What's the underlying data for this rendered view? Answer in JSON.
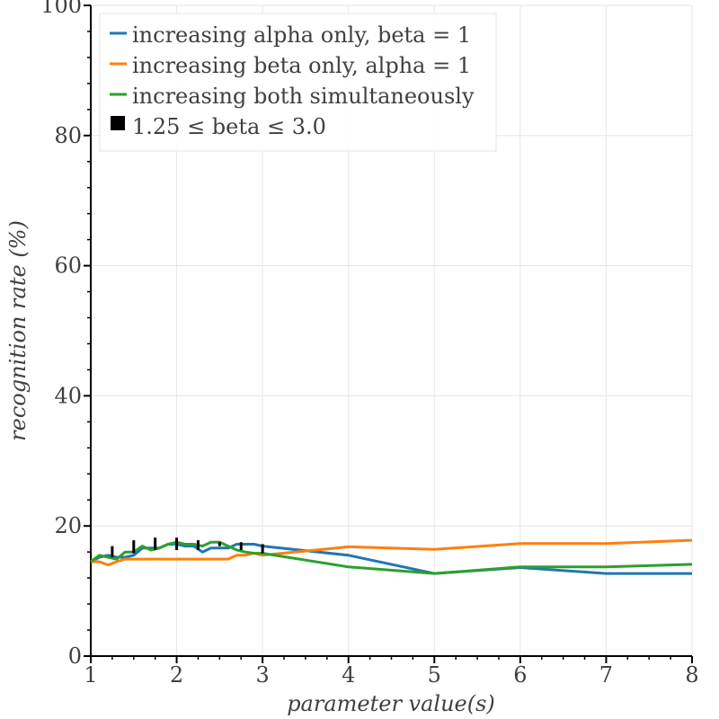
{
  "chart_data": {
    "type": "line",
    "title": "",
    "xlabel": "parameter value(s)",
    "ylabel": "recognition rate (%)",
    "xlim": [
      1,
      8
    ],
    "ylim": [
      0,
      100
    ],
    "xticks": [
      "1",
      "2",
      "3",
      "4",
      "5",
      "6",
      "7",
      "8"
    ],
    "yticks": [
      "0",
      "20",
      "40",
      "60",
      "80",
      "100"
    ],
    "grid": true,
    "legend_position": "top-left",
    "series": [
      {
        "name": "increasing alpha only, beta = 1",
        "color": "#1f77b4",
        "x": [
          1.0,
          1.1,
          1.2,
          1.3,
          1.4,
          1.5,
          1.6,
          1.7,
          1.8,
          1.9,
          2.0,
          2.1,
          2.2,
          2.3,
          2.4,
          2.5,
          2.6,
          2.7,
          2.8,
          2.9,
          3.0,
          4.0,
          5.0,
          6.0,
          7.0,
          8.0
        ],
        "y": [
          14.5,
          15.2,
          15.5,
          15.2,
          15.2,
          15.5,
          16.6,
          16.6,
          16.6,
          17.2,
          17.2,
          16.9,
          16.9,
          16.0,
          16.6,
          16.6,
          16.6,
          17.2,
          17.2,
          17.2,
          16.9,
          15.5,
          12.7,
          13.6,
          12.7,
          12.7
        ]
      },
      {
        "name": "increasing beta only, alpha = 1",
        "color": "#ff7f0e",
        "x": [
          1.0,
          1.1,
          1.2,
          1.3,
          1.4,
          1.5,
          1.6,
          1.7,
          1.8,
          1.9,
          2.0,
          2.1,
          2.2,
          2.3,
          2.4,
          2.5,
          2.6,
          2.7,
          2.8,
          2.9,
          3.0,
          4.0,
          5.0,
          6.0,
          7.0,
          8.0
        ],
        "y": [
          14.5,
          14.5,
          14.0,
          14.5,
          14.9,
          14.9,
          14.9,
          14.9,
          14.9,
          14.9,
          14.9,
          14.9,
          14.9,
          14.9,
          14.9,
          14.9,
          14.9,
          15.5,
          15.5,
          15.8,
          15.5,
          16.8,
          16.4,
          17.3,
          17.3,
          17.8
        ]
      },
      {
        "name": "increasing both simultaneously",
        "color": "#2ca02c",
        "x": [
          1.0,
          1.1,
          1.2,
          1.3,
          1.4,
          1.5,
          1.6,
          1.7,
          1.8,
          1.9,
          2.0,
          2.1,
          2.2,
          2.3,
          2.4,
          2.5,
          2.6,
          2.7,
          2.8,
          2.9,
          3.0,
          4.0,
          5.0,
          6.0,
          7.0,
          8.0
        ],
        "y": [
          14.5,
          15.5,
          15.2,
          14.9,
          16.0,
          16.0,
          16.9,
          16.3,
          16.6,
          17.2,
          17.5,
          17.2,
          17.2,
          16.9,
          17.5,
          17.5,
          16.9,
          16.3,
          16.0,
          15.8,
          15.8,
          13.7,
          12.7,
          13.7,
          13.7,
          14.1
        ]
      }
    ],
    "range_marker": {
      "name": "1.25 ≤ beta ≤ 3.0",
      "color": "#000000",
      "x": [
        1.25,
        1.5,
        1.75,
        2.0,
        2.25,
        2.5,
        2.75,
        3.0
      ],
      "y_low": [
        15.2,
        15.8,
        16.3,
        16.3,
        16.3,
        16.9,
        16.3,
        15.8
      ],
      "y_high": [
        16.9,
        17.8,
        18.2,
        18.2,
        17.8,
        17.5,
        17.5,
        17.2
      ]
    }
  }
}
